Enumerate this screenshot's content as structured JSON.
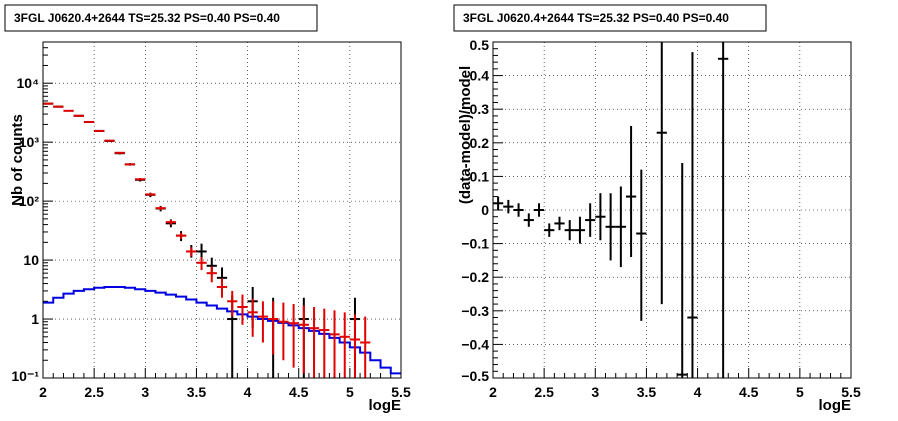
{
  "chart_data": [
    {
      "type": "line",
      "title": "3FGL J0620.4+2644 TS=25.32 PS=0.40 PS=0.40",
      "xlabel": "logE",
      "ylabel": "Nb of counts",
      "xlim": [
        2,
        5.5
      ],
      "ylim": [
        0.1,
        50000
      ],
      "yscale": "log",
      "grid": true,
      "xticks": [
        "2",
        "2.5",
        "3",
        "3.5",
        "4",
        "4.5",
        "5",
        "5.5"
      ],
      "yticks": [
        "10⁻¹",
        "1",
        "10",
        "10²",
        "10³",
        "10⁴"
      ],
      "series": [
        {
          "color": "#000000",
          "kind": "data-points",
          "points": [
            {
              "x": 2.05,
              "y": 4500,
              "lo": 4400,
              "hi": 4600
            },
            {
              "x": 2.15,
              "y": 4000,
              "lo": 3900,
              "hi": 4100
            },
            {
              "x": 2.35,
              "y": 2800,
              "lo": 2750,
              "hi": 2880
            },
            {
              "x": 2.45,
              "y": 2200,
              "lo": 2150,
              "hi": 2280
            },
            {
              "x": 2.55,
              "y": 1550,
              "lo": 1500,
              "hi": 1600
            },
            {
              "x": 2.65,
              "y": 1050,
              "lo": 1020,
              "hi": 1090
            },
            {
              "x": 2.75,
              "y": 650,
              "lo": 620,
              "hi": 680
            },
            {
              "x": 2.85,
              "y": 420,
              "lo": 400,
              "hi": 440
            },
            {
              "x": 2.95,
              "y": 230,
              "lo": 215,
              "hi": 245
            },
            {
              "x": 3.05,
              "y": 128,
              "lo": 117,
              "hi": 139
            },
            {
              "x": 3.15,
              "y": 75,
              "lo": 67,
              "hi": 83
            },
            {
              "x": 3.25,
              "y": 42,
              "lo": 36,
              "hi": 49
            },
            {
              "x": 3.35,
              "y": 26,
              "lo": 21,
              "hi": 31
            },
            {
              "x": 3.45,
              "y": 14,
              "lo": 11,
              "hi": 18
            },
            {
              "x": 3.55,
              "y": 14,
              "lo": 10,
              "hi": 19
            },
            {
              "x": 3.65,
              "y": 8,
              "lo": 5.5,
              "hi": 11
            },
            {
              "x": 3.75,
              "y": 5,
              "lo": 3,
              "hi": 7.5
            },
            {
              "x": 3.85,
              "y": 1,
              "lo": 0.1,
              "hi": 2.5
            },
            {
              "x": 4.05,
              "y": 2,
              "lo": 0.7,
              "hi": 3.5
            },
            {
              "x": 4.25,
              "y": 1,
              "lo": 0.1,
              "hi": 2.3
            },
            {
              "x": 4.55,
              "y": 1,
              "lo": 0.1,
              "hi": 2.3
            },
            {
              "x": 5.05,
              "y": 1,
              "lo": 0.1,
              "hi": 2.3
            }
          ]
        },
        {
          "color": "#e00000",
          "kind": "model-points",
          "points": [
            {
              "x": 2.05,
              "y": 4500,
              "lo": 4430,
              "hi": 4570
            },
            {
              "x": 2.15,
              "y": 4000,
              "lo": 3940,
              "hi": 4060
            },
            {
              "x": 2.25,
              "y": 3400,
              "lo": 3350,
              "hi": 3450
            },
            {
              "x": 2.35,
              "y": 2800,
              "lo": 2760,
              "hi": 2840
            },
            {
              "x": 2.45,
              "y": 2200,
              "lo": 2170,
              "hi": 2230
            },
            {
              "x": 2.55,
              "y": 1550,
              "lo": 1530,
              "hi": 1570
            },
            {
              "x": 2.65,
              "y": 1060,
              "lo": 1040,
              "hi": 1080
            },
            {
              "x": 2.75,
              "y": 660,
              "lo": 645,
              "hi": 675
            },
            {
              "x": 2.85,
              "y": 420,
              "lo": 408,
              "hi": 432
            },
            {
              "x": 2.95,
              "y": 235,
              "lo": 226,
              "hi": 244
            },
            {
              "x": 3.05,
              "y": 130,
              "lo": 123,
              "hi": 137
            },
            {
              "x": 3.15,
              "y": 76,
              "lo": 71,
              "hi": 81
            },
            {
              "x": 3.25,
              "y": 44,
              "lo": 40,
              "hi": 48
            },
            {
              "x": 3.35,
              "y": 26,
              "lo": 23,
              "hi": 29
            },
            {
              "x": 3.45,
              "y": 14,
              "lo": 11.5,
              "hi": 16.5
            },
            {
              "x": 3.55,
              "y": 9,
              "lo": 6.8,
              "hi": 11.3
            },
            {
              "x": 3.65,
              "y": 6,
              "lo": 4.2,
              "hi": 7.8
            },
            {
              "x": 3.75,
              "y": 3.5,
              "lo": 2.3,
              "hi": 4.9
            },
            {
              "x": 3.85,
              "y": 2,
              "lo": 1.1,
              "hi": 3.0
            },
            {
              "x": 3.95,
              "y": 1.6,
              "lo": 0.8,
              "hi": 2.6
            },
            {
              "x": 4.05,
              "y": 1.3,
              "lo": 0.5,
              "hi": 2.2
            },
            {
              "x": 4.15,
              "y": 1.1,
              "lo": 0.4,
              "hi": 2.0
            },
            {
              "x": 4.25,
              "y": 1.0,
              "lo": 0.25,
              "hi": 2.0
            },
            {
              "x": 4.35,
              "y": 0.9,
              "lo": 0.2,
              "hi": 1.9
            },
            {
              "x": 4.45,
              "y": 0.85,
              "lo": 0.15,
              "hi": 1.8
            },
            {
              "x": 4.55,
              "y": 0.8,
              "lo": 0.12,
              "hi": 1.7
            },
            {
              "x": 4.65,
              "y": 0.7,
              "lo": 0.1,
              "hi": 1.6
            },
            {
              "x": 4.75,
              "y": 0.65,
              "lo": 0.1,
              "hi": 1.5
            },
            {
              "x": 4.85,
              "y": 0.55,
              "lo": 0.1,
              "hi": 1.4
            },
            {
              "x": 4.95,
              "y": 0.5,
              "lo": 0.1,
              "hi": 1.3
            },
            {
              "x": 5.05,
              "y": 0.45,
              "lo": 0.1,
              "hi": 1.2
            },
            {
              "x": 5.15,
              "y": 0.4,
              "lo": 0.1,
              "hi": 1.1
            }
          ]
        },
        {
          "color": "#0000e0",
          "kind": "step",
          "x_edges": [
            2.0,
            2.1,
            2.2,
            2.3,
            2.4,
            2.5,
            2.6,
            2.7,
            2.8,
            2.9,
            3.0,
            3.1,
            3.2,
            3.3,
            3.4,
            3.5,
            3.6,
            3.7,
            3.8,
            3.9,
            4.0,
            4.1,
            4.2,
            4.3,
            4.4,
            4.5,
            4.6,
            4.7,
            4.8,
            4.9,
            5.0,
            5.1,
            5.2,
            5.3,
            5.4,
            5.5
          ],
          "values": [
            1.9,
            2.3,
            2.7,
            3.0,
            3.2,
            3.4,
            3.5,
            3.5,
            3.4,
            3.2,
            3.0,
            2.8,
            2.6,
            2.4,
            2.15,
            1.9,
            1.7,
            1.5,
            1.35,
            1.2,
            1.1,
            1.0,
            0.93,
            0.86,
            0.78,
            0.7,
            0.63,
            0.56,
            0.48,
            0.4,
            0.33,
            0.27,
            0.2,
            0.15,
            0.12
          ]
        }
      ]
    },
    {
      "type": "scatter",
      "title": "3FGL J0620.4+2644 TS=25.32 PS=0.40 PS=0.40",
      "xlabel": "logE",
      "ylabel": "(data-model)/model",
      "xlim": [
        2,
        5.5
      ],
      "ylim": [
        -0.5,
        0.5
      ],
      "grid": true,
      "xticks": [
        "2",
        "2.5",
        "3",
        "3.5",
        "4",
        "4.5",
        "5",
        "5.5"
      ],
      "yticks": [
        "−0.5",
        "−0.4",
        "−0.3",
        "−0.2",
        "−0.1",
        "0",
        "0.1",
        "0.2",
        "0.3",
        "0.4",
        "0.5"
      ],
      "series": [
        {
          "color": "#000000",
          "points": [
            {
              "x": 2.05,
              "y": 0.02,
              "lo": 0.0,
              "hi": 0.04
            },
            {
              "x": 2.15,
              "y": 0.01,
              "lo": -0.01,
              "hi": 0.03
            },
            {
              "x": 2.25,
              "y": 0.0,
              "lo": -0.02,
              "hi": 0.02
            },
            {
              "x": 2.35,
              "y": -0.03,
              "lo": -0.05,
              "hi": -0.01
            },
            {
              "x": 2.45,
              "y": 0.0,
              "lo": -0.02,
              "hi": 0.02
            },
            {
              "x": 2.55,
              "y": -0.06,
              "lo": -0.08,
              "hi": -0.04
            },
            {
              "x": 2.65,
              "y": -0.04,
              "lo": -0.06,
              "hi": -0.02
            },
            {
              "x": 2.75,
              "y": -0.06,
              "lo": -0.09,
              "hi": -0.03
            },
            {
              "x": 2.85,
              "y": -0.06,
              "lo": -0.1,
              "hi": -0.02
            },
            {
              "x": 2.95,
              "y": -0.03,
              "lo": -0.08,
              "hi": 0.02
            },
            {
              "x": 3.05,
              "y": -0.02,
              "lo": -0.09,
              "hi": 0.05
            },
            {
              "x": 3.15,
              "y": -0.05,
              "lo": -0.15,
              "hi": 0.05
            },
            {
              "x": 3.25,
              "y": -0.05,
              "lo": -0.17,
              "hi": 0.07
            },
            {
              "x": 3.35,
              "y": 0.04,
              "lo": -0.14,
              "hi": 0.25
            },
            {
              "x": 3.45,
              "y": -0.07,
              "lo": -0.33,
              "hi": 0.12
            },
            {
              "x": 3.65,
              "y": 0.23,
              "lo": -0.28,
              "hi": 0.5
            },
            {
              "x": 3.85,
              "y": -0.49,
              "lo": -0.5,
              "hi": 0.14
            },
            {
              "x": 3.95,
              "y": -0.32,
              "lo": -0.5,
              "hi": 0.47
            },
            {
              "x": 4.25,
              "y": 0.45,
              "lo": -0.5,
              "hi": 0.5
            }
          ]
        }
      ]
    }
  ]
}
